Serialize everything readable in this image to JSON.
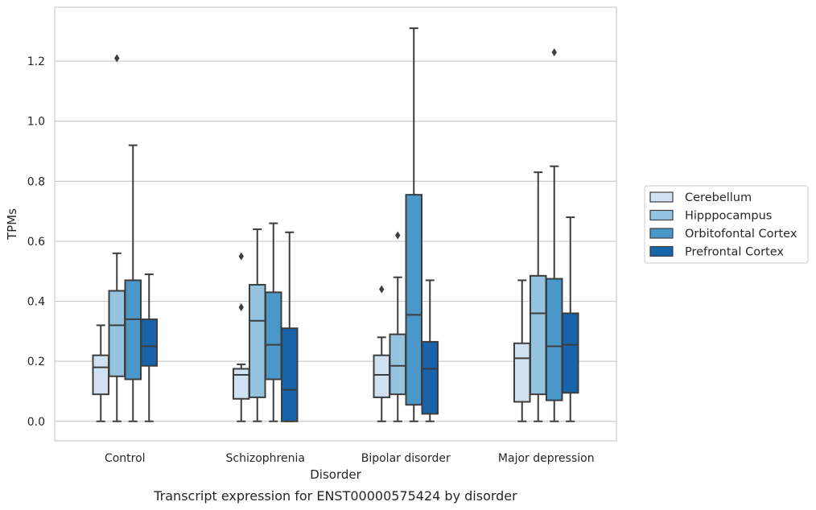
{
  "chart_data": {
    "type": "box",
    "caption": "Transcript expression for ENST00000575424 by disorder",
    "xlabel": "Disorder",
    "ylabel": "TPMs",
    "ylim": [
      -0.065,
      1.38
    ],
    "yticks": [
      0.0,
      0.2,
      0.4,
      0.6,
      0.8,
      1.0,
      1.2
    ],
    "ytick_labels": [
      "0.0",
      "0.2",
      "0.4",
      "0.6",
      "0.8",
      "1.0",
      "1.2"
    ],
    "grid": "horizontal",
    "legend_position": "right",
    "categories": [
      "Control",
      "Schizophrenia",
      "Bipolar disorder",
      "Major depression"
    ],
    "series": [
      {
        "name": "Cerebellum",
        "color": "#d0e1f2",
        "boxes": [
          {
            "min": 0.0,
            "q1": 0.09,
            "median": 0.18,
            "q3": 0.22,
            "max": 0.32,
            "outliers": []
          },
          {
            "min": 0.0,
            "q1": 0.075,
            "median": 0.155,
            "q3": 0.175,
            "max": 0.19,
            "outliers": [
              0.38,
              0.55
            ]
          },
          {
            "min": 0.0,
            "q1": 0.08,
            "median": 0.155,
            "q3": 0.22,
            "max": 0.28,
            "outliers": [
              0.44
            ]
          },
          {
            "min": 0.0,
            "q1": 0.065,
            "median": 0.21,
            "q3": 0.26,
            "max": 0.47,
            "outliers": []
          }
        ]
      },
      {
        "name": "Hipppocampus",
        "color": "#94c4df",
        "boxes": [
          {
            "min": 0.0,
            "q1": 0.15,
            "median": 0.32,
            "q3": 0.435,
            "max": 0.56,
            "outliers": [
              1.21
            ]
          },
          {
            "min": 0.0,
            "q1": 0.08,
            "median": 0.335,
            "q3": 0.455,
            "max": 0.64,
            "outliers": []
          },
          {
            "min": 0.0,
            "q1": 0.09,
            "median": 0.185,
            "q3": 0.29,
            "max": 0.48,
            "outliers": [
              0.62
            ]
          },
          {
            "min": 0.0,
            "q1": 0.09,
            "median": 0.36,
            "q3": 0.485,
            "max": 0.83,
            "outliers": []
          }
        ]
      },
      {
        "name": "Orbitofontal Cortex",
        "color": "#4a98c9",
        "boxes": [
          {
            "min": 0.0,
            "q1": 0.14,
            "median": 0.34,
            "q3": 0.47,
            "max": 0.92,
            "outliers": []
          },
          {
            "min": 0.0,
            "q1": 0.14,
            "median": 0.255,
            "q3": 0.43,
            "max": 0.66,
            "outliers": []
          },
          {
            "min": 0.0,
            "q1": 0.055,
            "median": 0.355,
            "q3": 0.755,
            "max": 1.31,
            "outliers": []
          },
          {
            "min": 0.0,
            "q1": 0.07,
            "median": 0.25,
            "q3": 0.475,
            "max": 0.85,
            "outliers": [
              1.23
            ]
          }
        ]
      },
      {
        "name": "Prefrontal Cortex",
        "color": "#1764ab",
        "boxes": [
          {
            "min": 0.0,
            "q1": 0.185,
            "median": 0.25,
            "q3": 0.34,
            "max": 0.49,
            "outliers": []
          },
          {
            "min": 0.0,
            "q1": 0.0,
            "median": 0.105,
            "q3": 0.31,
            "max": 0.63,
            "outliers": []
          },
          {
            "min": 0.0,
            "q1": 0.025,
            "median": 0.175,
            "q3": 0.265,
            "max": 0.47,
            "outliers": []
          },
          {
            "min": 0.0,
            "q1": 0.095,
            "median": 0.255,
            "q3": 0.36,
            "max": 0.68,
            "outliers": []
          }
        ]
      }
    ]
  }
}
